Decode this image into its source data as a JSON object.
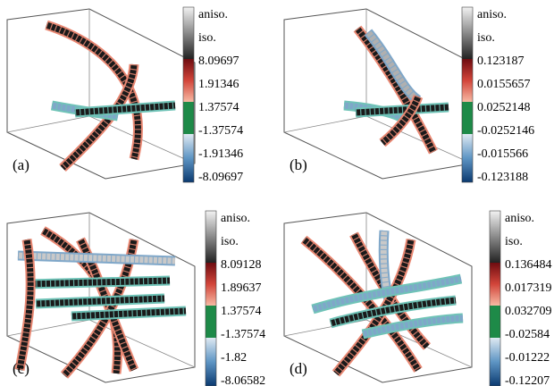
{
  "panels": [
    {
      "label": "(a)",
      "colorbar": [
        "aniso.",
        "iso.",
        "8.09697",
        "1.91346",
        "1.37574",
        "-1.37574",
        "-1.91346",
        "-8.09697"
      ]
    },
    {
      "label": "(b)",
      "colorbar": [
        "aniso.",
        "iso.",
        "0.123187",
        "0.0155657",
        "0.0252148",
        "-0.0252146",
        "-0.015566",
        "-0.123188"
      ]
    },
    {
      "label": "(c)",
      "colorbar": [
        "aniso.",
        "iso.",
        "8.09128",
        "1.89637",
        "1.37574",
        "-1.37574",
        "-1.82",
        "-8.06582"
      ]
    },
    {
      "label": "(d)",
      "colorbar": [
        "aniso.",
        "iso.",
        "0.136484",
        "0.017319",
        "0.032709",
        "-0.02584",
        "-0.01222",
        "-0.12207"
      ]
    }
  ],
  "colors": {
    "gray_top": "#f2f2f2",
    "gray_bottom": "#2a2a2a",
    "red_dark": "#7a0f12",
    "red_light": "#f6b39f",
    "green": "#1e8a48",
    "blue_light": "#b9d4e8",
    "blue_dark": "#0c3e74",
    "tube_salmon": "#e98873",
    "tube_teal": "#6fc3b7",
    "tube_blue": "#7fa7c9",
    "tube_dark": "#1a1a1a"
  }
}
